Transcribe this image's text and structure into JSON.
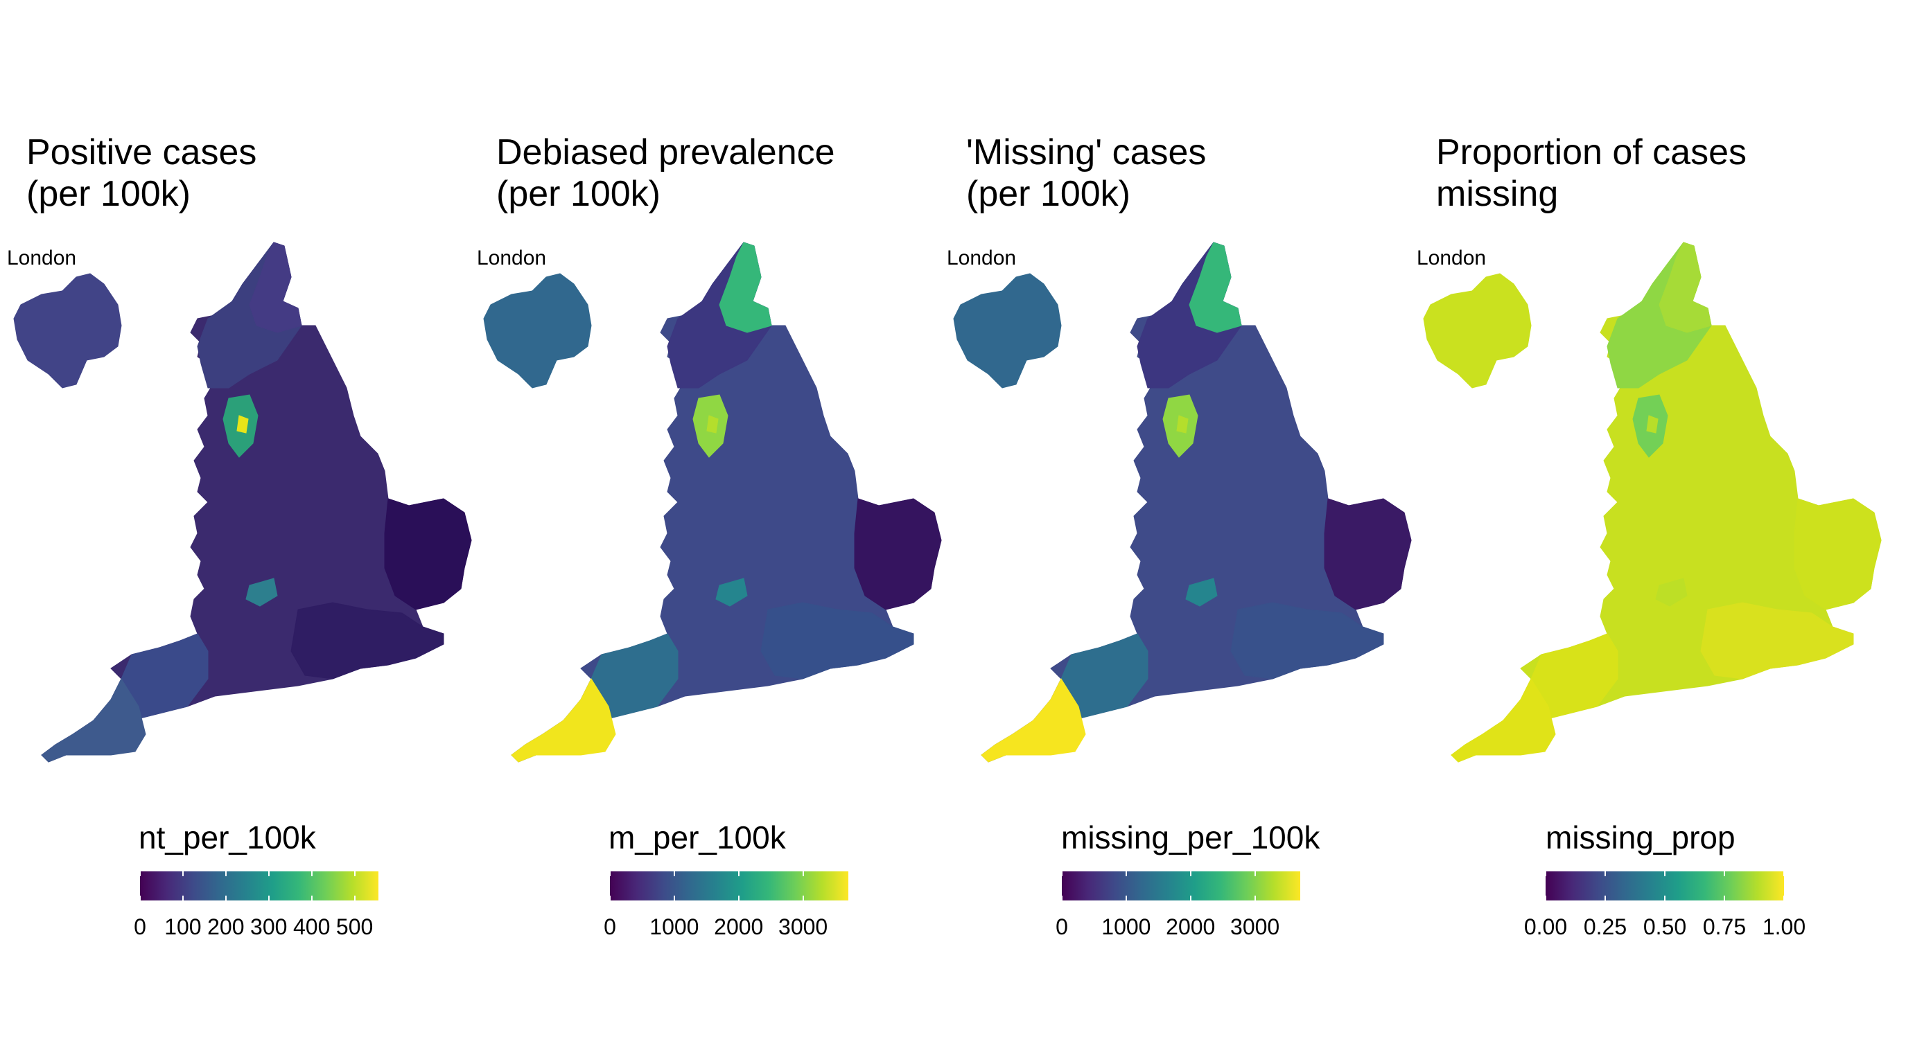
{
  "panels": [
    {
      "title": "Positive cases\n(per 100k)",
      "inset_label": "London",
      "legend": {
        "title": "nt_per_100k",
        "ticks": [
          "0",
          "100",
          "200",
          "300",
          "400",
          "500"
        ],
        "tick_positions": [
          0,
          0.18,
          0.36,
          0.54,
          0.72,
          0.9
        ]
      },
      "fills": {
        "england": "#3b2a6e",
        "southeast": "#2f1d63",
        "east": "#2a0f58",
        "north": "#3c3f7f",
        "northeast": "#443b84",
        "hotspot_a": "#2ba079",
        "hotspot_b": "#e7e419",
        "hotspot_c": "#2d7f8e",
        "southwest": "#3a4a8a",
        "cornwall": "#3e5a8d",
        "london": "#414487"
      }
    },
    {
      "title": "Debiased prevalence\n(per 100k)",
      "inset_label": "London",
      "legend": {
        "title": "m_per_100k",
        "ticks": [
          "0",
          "1000",
          "2000",
          "3000"
        ],
        "tick_positions": [
          0,
          0.27,
          0.54,
          0.81
        ]
      },
      "fills": {
        "england": "#3e4a89",
        "southeast": "#36508b",
        "east": "#35145f",
        "north": "#3c3780",
        "northeast": "#35b779",
        "hotspot_a": "#90d743",
        "hotspot_b": "#b4de2c",
        "hotspot_c": "#25858e",
        "southwest": "#2e6e8e",
        "cornwall": "#f1e51d",
        "london": "#31688e"
      }
    },
    {
      "title": "'Missing' cases\n(per 100k)",
      "inset_label": "London",
      "legend": {
        "title": "missing_per_100k",
        "ticks": [
          "0",
          "1000",
          "2000",
          "3000"
        ],
        "tick_positions": [
          0,
          0.27,
          0.54,
          0.81
        ]
      },
      "fills": {
        "england": "#3f4b89",
        "southeast": "#38518b",
        "east": "#3a1a65",
        "north": "#3c3680",
        "northeast": "#35b779",
        "hotspot_a": "#90d743",
        "hotspot_b": "#b4de2c",
        "hotspot_c": "#25858e",
        "southwest": "#2e6e8e",
        "cornwall": "#f6e51f",
        "london": "#31688e"
      }
    },
    {
      "title": "Proportion of cases\nmissing",
      "inset_label": "London",
      "legend": {
        "title": "missing_prop",
        "ticks": [
          "0.00",
          "0.25",
          "0.50",
          "0.75",
          "1.00"
        ],
        "tick_positions": [
          0,
          0.25,
          0.5,
          0.75,
          1
        ]
      },
      "fills": {
        "england": "#c8e020",
        "southeast": "#d9e11e",
        "east": "#cde11d",
        "north": "#8fd744",
        "northeast": "#a6db37",
        "hotspot_a": "#73d056",
        "hotspot_b": "#b8de29",
        "hotspot_c": "#bddf26",
        "southwest": "#d8e219",
        "cornwall": "#e0e318",
        "london": "#cae11f"
      }
    }
  ],
  "colorscale": [
    "#440154",
    "#482878",
    "#3e4a89",
    "#31688e",
    "#26828e",
    "#1f9e89",
    "#35b779",
    "#6ece58",
    "#b5de2b",
    "#fde725"
  ]
}
